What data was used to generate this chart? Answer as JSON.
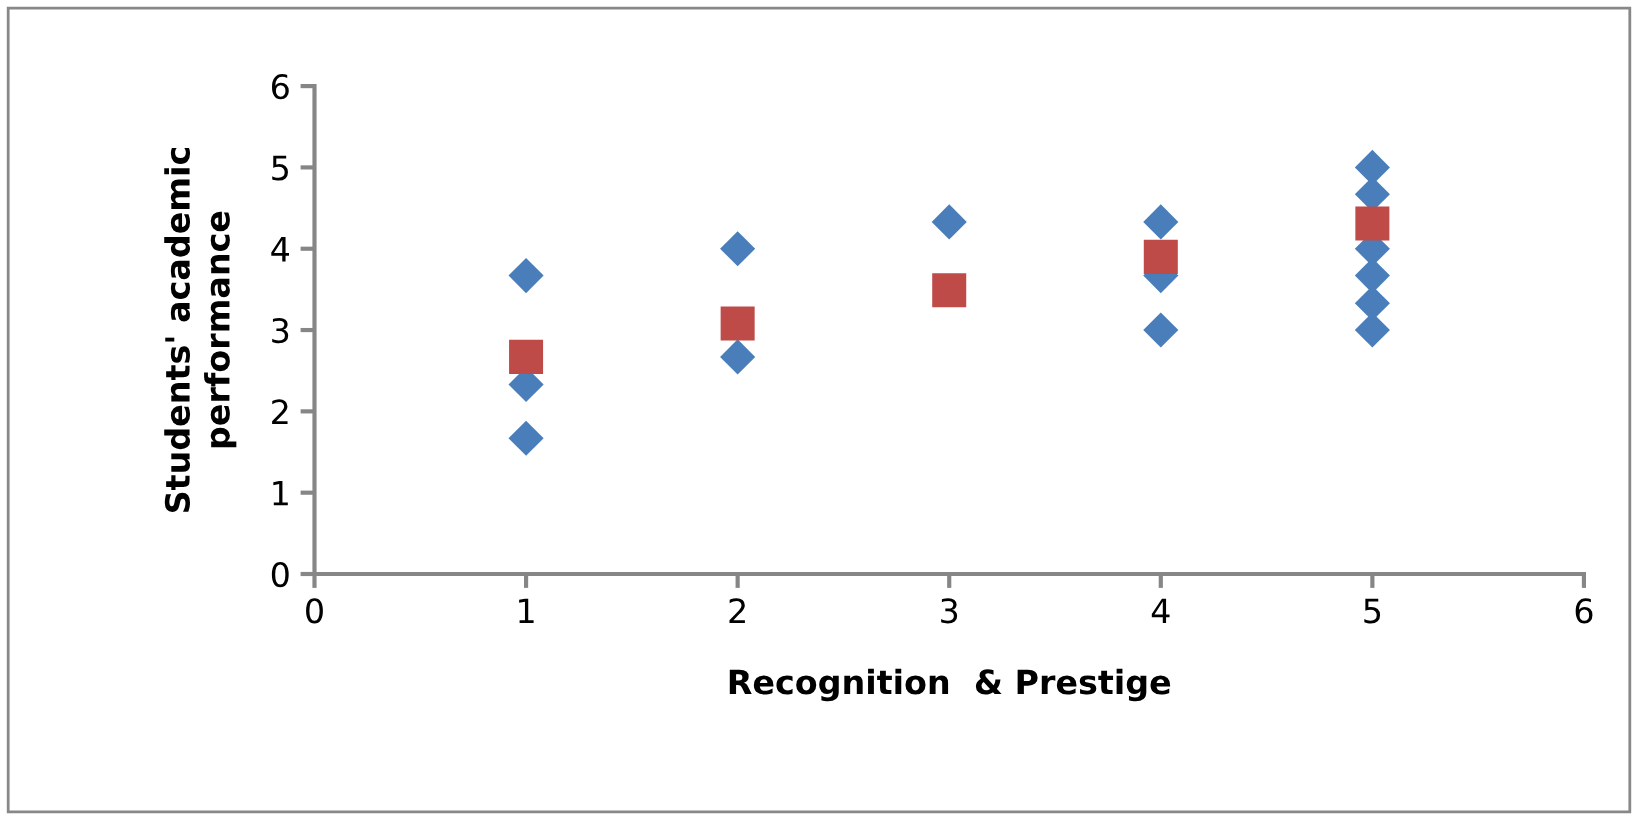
{
  "chart_data": {
    "type": "scatter",
    "xlabel": "Recognition  & Prestige",
    "ylabel": "Students' academic\nperformance",
    "xlim": [
      0,
      6
    ],
    "xticks": [
      0,
      1,
      2,
      3,
      4,
      5,
      6
    ],
    "ylim": [
      0,
      6
    ],
    "yticks": [
      0,
      1,
      2,
      3,
      4,
      5,
      6
    ],
    "grid": false,
    "legend": false,
    "series": [
      {
        "color": "#4a7ebb",
        "marker": "diamond",
        "x": [
          1,
          1,
          1,
          2,
          2,
          3,
          4,
          4,
          4,
          5,
          5,
          5,
          5,
          5,
          5
        ],
        "values": [
          3.67,
          2.33,
          1.67,
          4,
          2.67,
          4.33,
          4.33,
          3.67,
          3,
          5,
          4.67,
          4,
          3.67,
          3.33,
          3
        ]
      },
      {
        "color": "#be4b48",
        "marker": "square",
        "x": [
          1,
          2,
          3,
          4,
          5
        ],
        "values": [
          2.67,
          3.08,
          3.49,
          3.9,
          4.31
        ]
      }
    ]
  }
}
